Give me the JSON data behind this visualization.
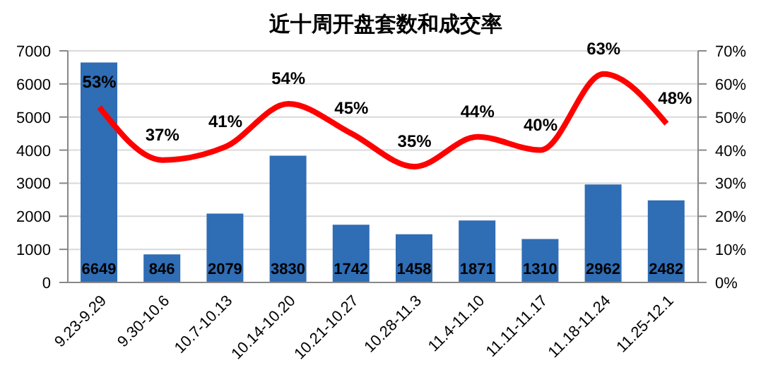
{
  "chart_data": {
    "type": "bar",
    "title": "近十周开盘套数和成交率",
    "categories": [
      "9.23-9.29",
      "9.30-10.6",
      "10.7-10.13",
      "10.14-10.20",
      "10.21-10.27",
      "10.28-11.3",
      "11.4-11.10",
      "11.11-11.17",
      "11.18-11.24",
      "11.25-12.1"
    ],
    "series": [
      {
        "color": "#2f6db5",
        "values": [
          6649,
          846,
          2079,
          3830,
          1742,
          1458,
          1871,
          1310,
          2962,
          2482
        ],
        "value_labels": [
          "6649",
          "846",
          "2079",
          "3830",
          "1742",
          "1458",
          "1871",
          "1310",
          "2962",
          "2482"
        ]
      },
      {
        "type": "line",
        "axis": "y2",
        "color": "#ff0000",
        "values": [
          53,
          37,
          41,
          54,
          45,
          35,
          44,
          40,
          63,
          48
        ],
        "value_labels": [
          "53%",
          "37%",
          "41%",
          "54%",
          "45%",
          "35%",
          "44%",
          "40%",
          "63%",
          "48%"
        ]
      }
    ],
    "ylim": [
      0,
      7000
    ],
    "yticks": [
      0,
      1000,
      2000,
      3000,
      4000,
      5000,
      6000,
      7000
    ],
    "y2lim": [
      0,
      70
    ],
    "y2ticks": [
      {
        "value": 0,
        "label": "0%"
      },
      {
        "value": 10,
        "label": "10%"
      },
      {
        "value": 20,
        "label": "20%"
      },
      {
        "value": 30,
        "label": "30%"
      },
      {
        "value": 40,
        "label": "40%"
      },
      {
        "value": 50,
        "label": "50%"
      },
      {
        "value": 60,
        "label": "60%"
      },
      {
        "value": 70,
        "label": "70%"
      }
    ],
    "grid": "y",
    "legend": false,
    "marker": "none",
    "line_style": "solid"
  }
}
